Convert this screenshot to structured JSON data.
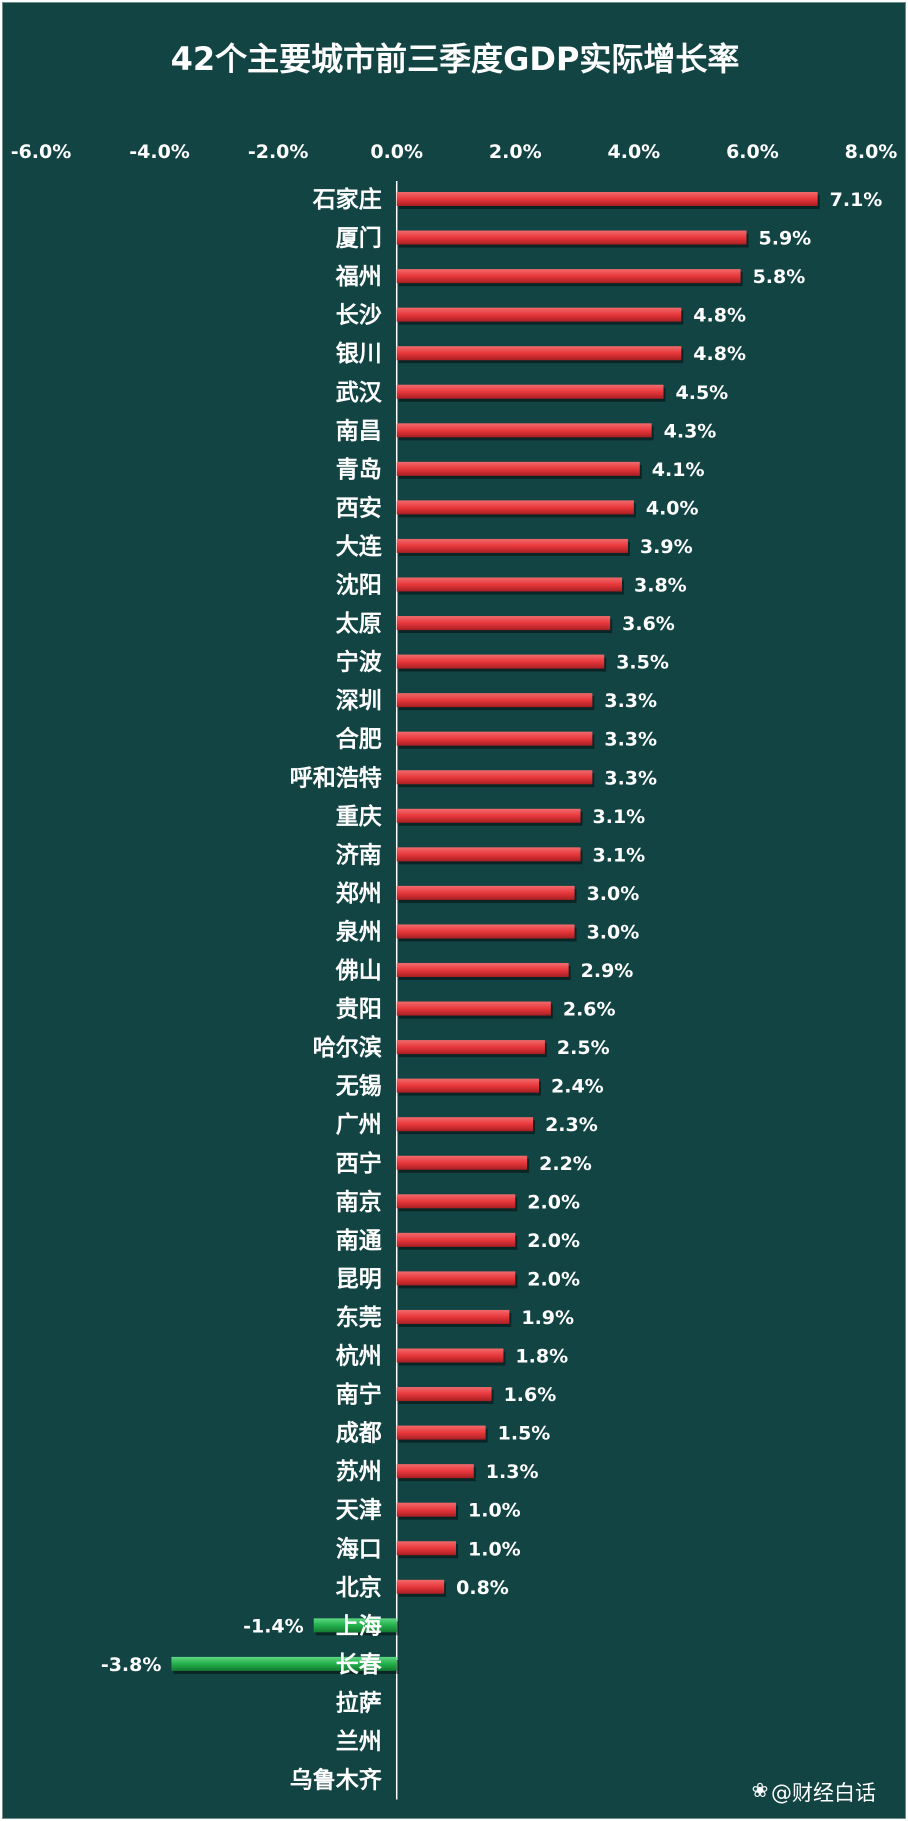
{
  "watermark": "@财经白话",
  "colors": {
    "background": "#134444",
    "positive_bar": "#e8383c",
    "negative_bar": "#22b04b",
    "axis_line": "#ffffff",
    "text": "#ffffff"
  },
  "chart_data": {
    "type": "bar",
    "orientation": "horizontal",
    "title": "42个主要城市前三季度GDP实际增长率",
    "xlim": [
      -0.06,
      0.08
    ],
    "x_ticks": [
      -0.06,
      -0.04,
      -0.02,
      0,
      0.02,
      0.04,
      0.06,
      0.08
    ],
    "x_tick_labels": [
      "-6.0%",
      "-4.0%",
      "-2.0%",
      "0.0%",
      "2.0%",
      "4.0%",
      "6.0%",
      "8.0%"
    ],
    "x_axis_position": "top",
    "grid": false,
    "legend": "none",
    "categories": [
      "石家庄",
      "厦门",
      "福州",
      "长沙",
      "银川",
      "武汉",
      "南昌",
      "青岛",
      "西安",
      "大连",
      "沈阳",
      "太原",
      "宁波",
      "深圳",
      "合肥",
      "呼和浩特",
      "重庆",
      "济南",
      "郑州",
      "泉州",
      "佛山",
      "贵阳",
      "哈尔滨",
      "无锡",
      "广州",
      "西宁",
      "南京",
      "南通",
      "昆明",
      "东莞",
      "杭州",
      "南宁",
      "成都",
      "苏州",
      "天津",
      "海口",
      "北京",
      "上海",
      "长春",
      "拉萨",
      "兰州",
      "乌鲁木齐"
    ],
    "values": [
      0.071,
      0.059,
      0.058,
      0.048,
      0.048,
      0.045,
      0.043,
      0.041,
      0.04,
      0.039,
      0.038,
      0.036,
      0.035,
      0.033,
      0.033,
      0.033,
      0.031,
      0.031,
      0.03,
      0.03,
      0.029,
      0.026,
      0.025,
      0.024,
      0.023,
      0.022,
      0.02,
      0.02,
      0.02,
      0.019,
      0.018,
      0.016,
      0.015,
      0.013,
      0.01,
      0.01,
      0.008,
      -0.014,
      -0.038,
      null,
      null,
      null
    ],
    "value_labels": [
      "7.1%",
      "5.9%",
      "5.8%",
      "4.8%",
      "4.8%",
      "4.5%",
      "4.3%",
      "4.1%",
      "4.0%",
      "3.9%",
      "3.8%",
      "3.6%",
      "3.5%",
      "3.3%",
      "3.3%",
      "3.3%",
      "3.1%",
      "3.1%",
      "3.0%",
      "3.0%",
      "2.9%",
      "2.6%",
      "2.5%",
      "2.4%",
      "2.3%",
      "2.2%",
      "2.0%",
      "2.0%",
      "2.0%",
      "1.9%",
      "1.8%",
      "1.6%",
      "1.5%",
      "1.3%",
      "1.0%",
      "1.0%",
      "0.8%",
      "-1.4%",
      "-3.8%",
      "",
      "",
      ""
    ]
  }
}
